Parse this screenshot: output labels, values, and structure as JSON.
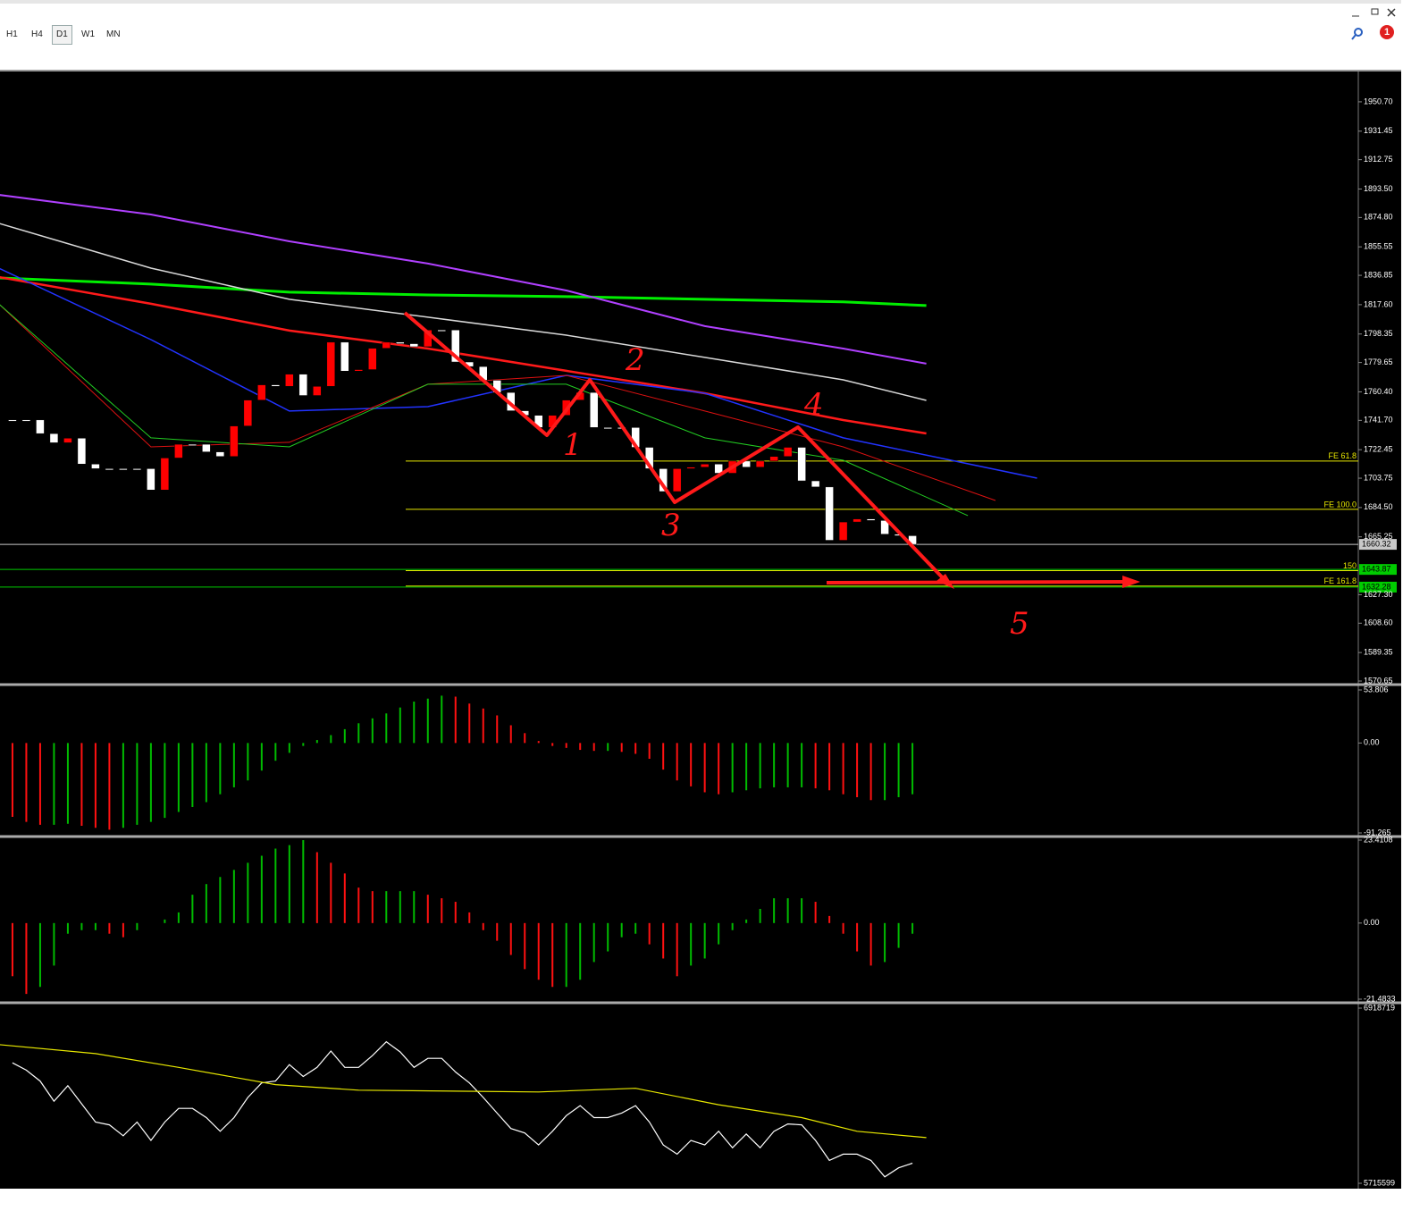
{
  "toolbar": {
    "timeframes": [
      "H1",
      "H4",
      "D1",
      "W1",
      "MN"
    ],
    "active": "D1"
  },
  "notification": {
    "count": "1"
  },
  "chart_data": [
    {
      "type": "candlestick",
      "xlim": [
        -0.9,
        97.2
      ],
      "ylim": [
        1568.9,
        1970.6
      ],
      "close": [
        1742,
        1742,
        1733,
        1727,
        1730,
        1713,
        1710,
        1710,
        1710,
        1710,
        1696,
        1717,
        1726,
        1726,
        1721,
        1718,
        1738,
        1755,
        1765,
        1764,
        1772,
        1758,
        1764,
        1793,
        1774,
        1775,
        1789,
        1793,
        1792,
        1790,
        1801,
        1801,
        1780,
        1777,
        1768,
        1760,
        1748,
        1745,
        1737,
        1745,
        1755,
        1760,
        1737,
        1737,
        1737,
        1724,
        1710,
        1695,
        1710,
        1711,
        1713,
        1707,
        1715,
        1711,
        1715,
        1718,
        1724,
        1702,
        1698,
        1663,
        1675,
        1677,
        1676,
        1667,
        1666,
        1660.32
      ],
      "up_color": "#ff0000",
      "down_color": "#ffffff",
      "lines": [
        {
          "color": "#00ee00",
          "width": 3,
          "x": [
            -1,
            10,
            20,
            30,
            40,
            50,
            60,
            66
          ],
          "values": [
            1835.2,
            1831.1,
            1825.8,
            1824.0,
            1822.9,
            1821.1,
            1819.4,
            1817.0
          ]
        },
        {
          "color": "#b040ff",
          "width": 2,
          "x": [
            -1,
            10,
            20,
            30,
            40,
            50,
            60,
            66
          ],
          "values": [
            1889.7,
            1876.8,
            1859.2,
            1844.6,
            1826.9,
            1803.5,
            1788.8,
            1778.9
          ]
        },
        {
          "color": "#d8d8d8",
          "width": 1.5,
          "x": [
            -1,
            10,
            20,
            30,
            40,
            50,
            60,
            66
          ],
          "values": [
            1871.0,
            1841.6,
            1821.1,
            1809.4,
            1797.6,
            1783.0,
            1768.3,
            1754.8
          ]
        },
        {
          "color": "#ff1a1a",
          "width": 2.5,
          "x": [
            -1,
            10,
            20,
            30,
            40,
            50,
            60,
            66
          ],
          "values": [
            1835.7,
            1818.2,
            1800.6,
            1788.8,
            1774.2,
            1759.5,
            1741.9,
            1733.1
          ]
        },
        {
          "color": "#2233ff",
          "width": 1.5,
          "x": [
            -1,
            10,
            20,
            30,
            40,
            50,
            60,
            74
          ],
          "values": [
            1841.6,
            1794.7,
            1747.8,
            1750.7,
            1771.2,
            1759.5,
            1730.2,
            1703.8
          ]
        },
        {
          "color": "#dd1111",
          "width": 1,
          "x": [
            -1,
            10,
            20,
            30,
            40,
            50,
            60,
            71
          ],
          "values": [
            1818.2,
            1724.3,
            1727.3,
            1765.4,
            1771.2,
            1747.8,
            1724.3,
            1689.1
          ]
        },
        {
          "color": "#22cc22",
          "width": 1,
          "x": [
            -1,
            10,
            20,
            30,
            40,
            50,
            60,
            69
          ],
          "values": [
            1818.2,
            1730.2,
            1724.3,
            1765.4,
            1765.4,
            1730.2,
            1715.5,
            1679.2
          ]
        }
      ],
      "levels": [
        {
          "label": "FE 61.8",
          "value": 1715.0,
          "x_start": 28.4,
          "color": "#e8e800"
        },
        {
          "label": "FE 100.0",
          "value": 1683.3,
          "x_start": 28.4,
          "color": "#e8e800"
        },
        {
          "label": "150",
          "value": 1643.1,
          "x_start": 28.4,
          "color": "#e8e800"
        },
        {
          "label": "FE 161.8",
          "value": 1633.0,
          "x_start": 28.4,
          "color": "#e8e800"
        }
      ],
      "price_tags": [
        {
          "value": 1660.32,
          "color": "#c8c8c8"
        },
        {
          "value": 1643.87,
          "color": "#00cc00"
        },
        {
          "value": 1632.28,
          "color": "#00cc00"
        }
      ],
      "yticks": [
        {
          "value": 1950.7,
          "label": "1950.70"
        },
        1931.45,
        1912.75,
        {
          "value": 1893.5,
          "label": "1893.50"
        },
        {
          "value": 1874.8,
          "label": "1874.80"
        },
        1855.55,
        1836.85,
        {
          "value": 1817.6,
          "label": "1817.60"
        },
        1798.35,
        1779.65,
        {
          "value": 1760.4,
          "label": "1760.40"
        },
        {
          "value": 1741.7,
          "label": "1741.70"
        },
        1722.45,
        1703.75,
        {
          "value": 1684.5,
          "label": "1684.50"
        },
        1665.25,
        {
          "value": 1627.3,
          "label": "1627.30"
        },
        {
          "value": 1608.6,
          "label": "1608.60"
        },
        1589.35,
        1570.65
      ],
      "annotations": [
        "1",
        "2",
        "3",
        "4",
        "5"
      ]
    },
    {
      "type": "bar",
      "xlim": [
        -0.9,
        97.2
      ],
      "ylim": [
        -91.265,
        53.806
      ],
      "up_color": "#00bb00",
      "down_color": "#ff1111",
      "values": [
        -75,
        -80,
        -83,
        -83,
        -82,
        -84,
        -86,
        -88,
        -86,
        -83,
        -80,
        -76,
        -70,
        -65,
        -60,
        -52,
        -45,
        -38,
        -28,
        -18,
        -10,
        -3,
        3,
        8,
        14,
        20,
        25,
        30,
        36,
        42,
        45,
        48,
        47,
        40,
        35,
        28,
        18,
        10,
        2,
        -3,
        -5,
        -7,
        -8,
        -8,
        -9,
        -11,
        -16,
        -27,
        -38,
        -44,
        -50,
        -52,
        -50,
        -48,
        -46,
        -45,
        -45,
        -45,
        -46,
        -48,
        -52,
        -55,
        -58,
        -58,
        -55,
        -52
      ],
      "yticks": [
        53.806,
        {
          "value": 0,
          "label": "0.00"
        },
        -91.265
      ]
    },
    {
      "type": "bar",
      "xlim": [
        -0.9,
        97.2
      ],
      "ylim": [
        -21.4833,
        23.4108
      ],
      "up_color": "#00bb00",
      "down_color": "#ff1111",
      "values": [
        -15,
        -20,
        -18,
        -12,
        -3,
        -2,
        -2,
        -3,
        -4,
        -2,
        0,
        1,
        3,
        8,
        11,
        13,
        15,
        17,
        19,
        21,
        22,
        23.4,
        20,
        17,
        14,
        10,
        9,
        9,
        9,
        9,
        8,
        7,
        6,
        3,
        -2,
        -5,
        -9,
        -13,
        -16,
        -18,
        -18,
        -16,
        -11,
        -8,
        -4,
        -3,
        -6,
        -10,
        -15,
        -12,
        -10,
        -6,
        -2,
        1,
        4,
        7,
        7,
        7,
        6,
        2,
        -3,
        -8,
        -12,
        -11,
        -7,
        -3
      ],
      "yticks": [
        23.4108,
        {
          "value": 0,
          "label": "0.00"
        },
        -21.4833
      ]
    },
    {
      "type": "line",
      "xlim": [
        -0.9,
        97.2
      ],
      "ylim": [
        5715599,
        6918719
      ],
      "series": [
        {
          "color": "#ffffff",
          "values": [
            6543000,
            6493000,
            6418000,
            6280000,
            6386000,
            6261000,
            6136000,
            6117000,
            6042000,
            6136000,
            6010000,
            6136000,
            6230000,
            6230000,
            6167000,
            6073000,
            6167000,
            6305000,
            6405000,
            6418000,
            6531000,
            6449000,
            6512000,
            6624000,
            6512000,
            6512000,
            6593000,
            6687000,
            6618000,
            6512000,
            6574000,
            6574000,
            6480000,
            6405000,
            6305000,
            6198000,
            6092000,
            6061000,
            5979000,
            6073000,
            6180000,
            6249000,
            6167000,
            6167000,
            6198000,
            6249000,
            6136000,
            5979000,
            5916000,
            6010000,
            5979000,
            6073000,
            5960000,
            6054000,
            5960000,
            6073000,
            6123000,
            6117000,
            6010000,
            5873000,
            5916000,
            5916000,
            5873000,
            5760000,
            5822000,
            5854000
          ]
        },
        {
          "color": "#e8e800",
          "x": [
            -1,
            6,
            12,
            19,
            25,
            38,
            45,
            51,
            57,
            61,
            66
          ],
          "values": [
            6668000,
            6606000,
            6512000,
            6393000,
            6355000,
            6343000,
            6368000,
            6255000,
            6167000,
            6073000,
            6029000
          ]
        }
      ],
      "yticks": [
        6918719,
        5715599
      ]
    }
  ]
}
